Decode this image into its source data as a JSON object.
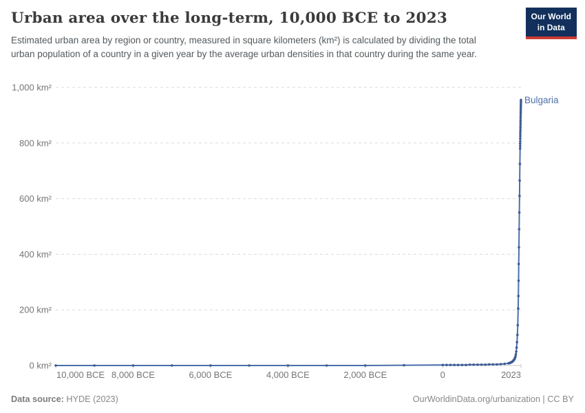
{
  "header": {
    "title": "Urban area over the long-term, 10,000 BCE to 2023",
    "subtitle": "Estimated urban area by region or country, measured in square kilometers (km²) is calculated by dividing the total urban population of a country in a given year by the average urban densities in that country during the same year.",
    "logo": {
      "line1": "Our World",
      "line2": "in Data",
      "bg_color": "#12305b",
      "accent_color": "#cc3b34"
    }
  },
  "footer": {
    "datasource_label": "Data source:",
    "datasource_value": " HYDE (2023)",
    "attribution": "OurWorldinData.org/urbanization | CC BY"
  },
  "chart_data": {
    "type": "line",
    "title": "Urban area over the long-term, 10,000 BCE to 2023",
    "xlabel": "",
    "ylabel": "",
    "xlim": [
      -10000,
      2023
    ],
    "ylim": [
      0,
      1000
    ],
    "grid": "horizontal-dashed",
    "legend_position": "end-of-line-label",
    "grid_color": "#dadada",
    "axis_color": "#c8c8c8",
    "x_ticks": [
      {
        "year": -10000,
        "label": "10,000 BCE"
      },
      {
        "year": -8000,
        "label": "8,000 BCE"
      },
      {
        "year": -6000,
        "label": "6,000 BCE"
      },
      {
        "year": -4000,
        "label": "4,000 BCE"
      },
      {
        "year": -2000,
        "label": "2,000 BCE"
      },
      {
        "year": 0,
        "label": "0"
      },
      {
        "year": 2023,
        "label": "2023"
      }
    ],
    "y_ticks": [
      {
        "value": 0,
        "label": "0 km²"
      },
      {
        "value": 200,
        "label": "200 km²"
      },
      {
        "value": 400,
        "label": "400 km²"
      },
      {
        "value": 600,
        "label": "600 km²"
      },
      {
        "value": 800,
        "label": "800 km²"
      },
      {
        "value": 1000,
        "label": "1,000 km²"
      }
    ],
    "series": [
      {
        "name": "Bulgaria",
        "color": "#4c6ea8",
        "marker_color": "#3e5c94",
        "points": [
          [
            -10000,
            0
          ],
          [
            -9000,
            0
          ],
          [
            -8000,
            0
          ],
          [
            -7000,
            0
          ],
          [
            -6000,
            0
          ],
          [
            -5000,
            0
          ],
          [
            -4000,
            0
          ],
          [
            -3000,
            0
          ],
          [
            -2000,
            0
          ],
          [
            -1000,
            1
          ],
          [
            0,
            2
          ],
          [
            100,
            2
          ],
          [
            200,
            2
          ],
          [
            300,
            2
          ],
          [
            400,
            2
          ],
          [
            500,
            2
          ],
          [
            600,
            2
          ],
          [
            700,
            3
          ],
          [
            800,
            3
          ],
          [
            900,
            3
          ],
          [
            1000,
            3
          ],
          [
            1100,
            3
          ],
          [
            1200,
            4
          ],
          [
            1300,
            4
          ],
          [
            1400,
            4
          ],
          [
            1500,
            5
          ],
          [
            1600,
            6
          ],
          [
            1700,
            8
          ],
          [
            1710,
            8
          ],
          [
            1720,
            9
          ],
          [
            1730,
            9
          ],
          [
            1740,
            10
          ],
          [
            1750,
            10
          ],
          [
            1760,
            11
          ],
          [
            1770,
            12
          ],
          [
            1780,
            12
          ],
          [
            1790,
            13
          ],
          [
            1800,
            14
          ],
          [
            1810,
            15
          ],
          [
            1820,
            17
          ],
          [
            1830,
            18
          ],
          [
            1840,
            20
          ],
          [
            1850,
            22
          ],
          [
            1860,
            25
          ],
          [
            1870,
            28
          ],
          [
            1880,
            33
          ],
          [
            1890,
            40
          ],
          [
            1900,
            50
          ],
          [
            1910,
            64
          ],
          [
            1920,
            84
          ],
          [
            1930,
            110
          ],
          [
            1940,
            145
          ],
          [
            1950,
            205
          ],
          [
            1955,
            250
          ],
          [
            1960,
            305
          ],
          [
            1965,
            365
          ],
          [
            1970,
            425
          ],
          [
            1975,
            490
          ],
          [
            1980,
            550
          ],
          [
            1985,
            610
          ],
          [
            1990,
            665
          ],
          [
            1995,
            725
          ],
          [
            2000,
            780
          ],
          [
            2001,
            789
          ],
          [
            2002,
            798
          ],
          [
            2003,
            807
          ],
          [
            2004,
            816
          ],
          [
            2005,
            825
          ],
          [
            2006,
            833
          ],
          [
            2007,
            841
          ],
          [
            2008,
            849
          ],
          [
            2009,
            857
          ],
          [
            2010,
            865
          ],
          [
            2011,
            873
          ],
          [
            2012,
            881
          ],
          [
            2013,
            889
          ],
          [
            2014,
            897
          ],
          [
            2015,
            905
          ],
          [
            2016,
            912
          ],
          [
            2017,
            919
          ],
          [
            2018,
            926
          ],
          [
            2019,
            932
          ],
          [
            2020,
            938
          ],
          [
            2021,
            944
          ],
          [
            2022,
            950
          ],
          [
            2023,
            955
          ]
        ]
      }
    ]
  }
}
